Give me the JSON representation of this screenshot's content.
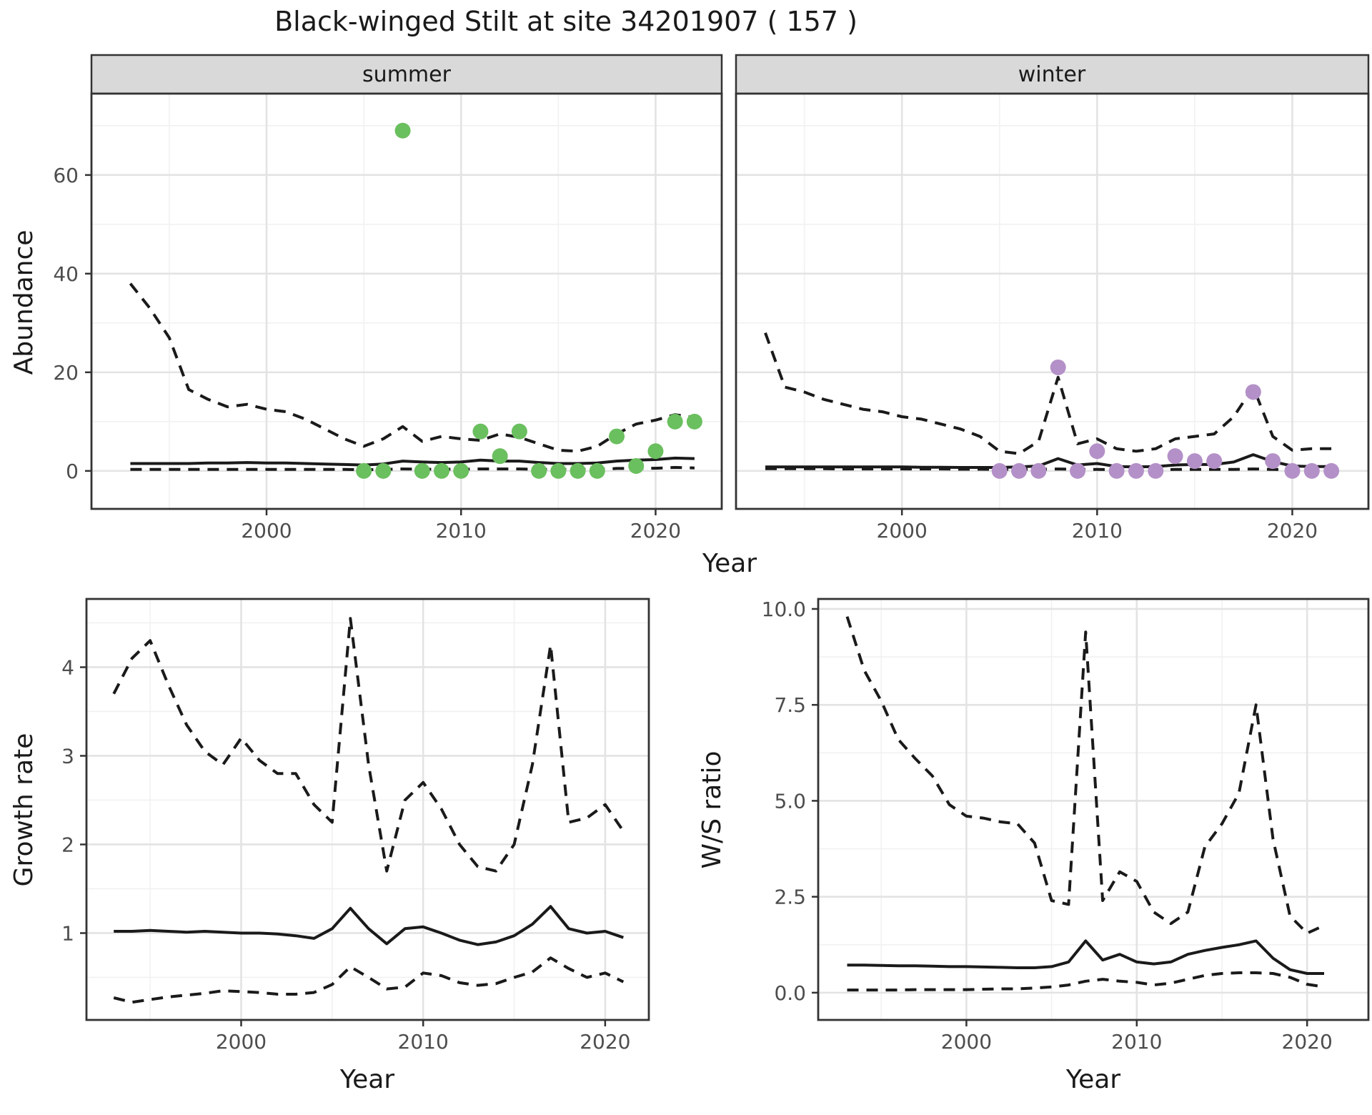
{
  "title": "Black-winged Stilt at site 34201907 ( 157 )",
  "labels": {
    "year": "Year",
    "abundance": "Abundance",
    "growth_rate": "Growth rate",
    "ws_ratio": "W/S ratio",
    "facet_summer": "summer",
    "facet_winter": "winter"
  },
  "colors": {
    "summer_point": "#6abf5e",
    "winter_point": "#b490c8",
    "line": "#1a1a1a",
    "strip_bg": "#d9d9d9",
    "panel_border": "#333333",
    "grid_major": "#e3e3e3",
    "grid_minor": "#f1f1f1",
    "tick_label": "#4d4d4d"
  },
  "chart_data": [
    {
      "id": "abundance-summer",
      "type": "line",
      "facet": "summer",
      "title": "",
      "xlabel": "Year",
      "ylabel": "Abundance",
      "xlim": [
        1991.0,
        2023.4
      ],
      "ylim": [
        -7.7,
        76.5
      ],
      "xticks": [
        2000,
        2010,
        2020
      ],
      "xminor": [
        1995,
        2005,
        2015
      ],
      "yticks": [
        0,
        20,
        40,
        60
      ],
      "ytick_labels": [
        "0",
        "20",
        "40",
        "60"
      ],
      "yminor": [
        10,
        30,
        50,
        70
      ],
      "x": [
        1993,
        1994,
        1995,
        1996,
        1997,
        1998,
        1999,
        2000,
        2001,
        2002,
        2003,
        2004,
        2005,
        2006,
        2007,
        2008,
        2009,
        2010,
        2011,
        2012,
        2013,
        2014,
        2015,
        2016,
        2017,
        2018,
        2019,
        2020,
        2021,
        2022
      ],
      "series": [
        {
          "name": "upper_ci",
          "style": "dashed",
          "values": [
            38,
            33,
            27,
            16.5,
            14.5,
            13,
            13.5,
            12.5,
            12,
            10.5,
            8.5,
            6.5,
            5,
            6.5,
            9,
            6,
            7,
            6.5,
            6.2,
            7.5,
            6.8,
            5.5,
            4.2,
            4,
            5,
            7.5,
            9.5,
            10.3,
            11.4,
            10.8
          ]
        },
        {
          "name": "mean",
          "style": "solid",
          "values": [
            1.5,
            1.5,
            1.5,
            1.5,
            1.6,
            1.6,
            1.7,
            1.6,
            1.6,
            1.5,
            1.4,
            1.3,
            1.2,
            1.4,
            2.0,
            1.8,
            1.7,
            1.8,
            2.2,
            2.0,
            2.0,
            1.7,
            1.5,
            1.5,
            1.6,
            2.0,
            2.2,
            2.3,
            2.6,
            2.5
          ]
        },
        {
          "name": "lower_ci",
          "style": "dashed",
          "values": [
            0.3,
            0.3,
            0.3,
            0.3,
            0.3,
            0.3,
            0.3,
            0.3,
            0.3,
            0.3,
            0.3,
            0.3,
            0.25,
            0.3,
            0.4,
            0.35,
            0.35,
            0.35,
            0.4,
            0.4,
            0.4,
            0.3,
            0.3,
            0.3,
            0.3,
            0.5,
            0.5,
            0.55,
            0.7,
            0.6
          ]
        }
      ],
      "points": [
        [
          2005,
          0
        ],
        [
          2006,
          0
        ],
        [
          2007,
          69
        ],
        [
          2008,
          0
        ],
        [
          2009,
          0
        ],
        [
          2010,
          0
        ],
        [
          2011,
          8
        ],
        [
          2012,
          3
        ],
        [
          2013,
          8
        ],
        [
          2014,
          0
        ],
        [
          2015,
          0
        ],
        [
          2016,
          0
        ],
        [
          2017,
          0
        ],
        [
          2018,
          7
        ],
        [
          2019,
          1
        ],
        [
          2020,
          4
        ],
        [
          2021,
          10
        ],
        [
          2022,
          10
        ]
      ],
      "point_color_key": "summer_point"
    },
    {
      "id": "abundance-winter",
      "type": "line",
      "facet": "winter",
      "title": "",
      "xlabel": "Year",
      "ylabel": "Abundance",
      "xlim": [
        1991.5,
        2023.9
      ],
      "ylim": [
        -7.7,
        76.5
      ],
      "xticks": [
        2000,
        2010,
        2020
      ],
      "xminor": [
        1995,
        2005,
        2015
      ],
      "yticks": [],
      "ytick_labels": [],
      "yminor": [
        10,
        30,
        50,
        70
      ],
      "ygrid_major": [
        0,
        20,
        40,
        60
      ],
      "x": [
        1993,
        1994,
        1995,
        1996,
        1997,
        1998,
        1999,
        2000,
        2001,
        2002,
        2003,
        2004,
        2005,
        2006,
        2007,
        2008,
        2009,
        2010,
        2011,
        2012,
        2013,
        2014,
        2015,
        2016,
        2017,
        2018,
        2019,
        2020,
        2021,
        2022
      ],
      "series": [
        {
          "name": "upper_ci",
          "style": "dashed",
          "values": [
            28,
            17,
            16,
            14.5,
            13.5,
            12.5,
            12,
            11,
            10.5,
            9.5,
            8.5,
            7,
            4,
            3.5,
            6,
            19,
            5.5,
            6.5,
            4.5,
            4,
            4.5,
            6.5,
            7,
            7.5,
            11,
            17,
            7,
            4.2,
            4.5,
            4.5
          ]
        },
        {
          "name": "mean",
          "style": "solid",
          "values": [
            0.8,
            0.8,
            0.8,
            0.8,
            0.8,
            0.8,
            0.8,
            0.8,
            0.75,
            0.75,
            0.7,
            0.7,
            0.7,
            0.8,
            1.0,
            2.5,
            1.2,
            1.5,
            0.9,
            0.8,
            0.9,
            1.2,
            1.3,
            1.3,
            1.8,
            3.3,
            1.9,
            1.0,
            0.9,
            0.9
          ]
        },
        {
          "name": "lower_ci",
          "style": "dashed",
          "values": [
            0.45,
            0.45,
            0.45,
            0.45,
            0.4,
            0.4,
            0.4,
            0.4,
            0.4,
            0.4,
            0.35,
            0.35,
            0.3,
            0.3,
            0.3,
            0.4,
            0.3,
            0.3,
            0.25,
            0.25,
            0.25,
            0.3,
            0.3,
            0.3,
            0.3,
            0.4,
            0.3,
            0.25,
            0.2,
            0.2
          ]
        }
      ],
      "points": [
        [
          2005,
          0
        ],
        [
          2006,
          0
        ],
        [
          2007,
          0
        ],
        [
          2008,
          21
        ],
        [
          2009,
          0
        ],
        [
          2010,
          4
        ],
        [
          2011,
          0
        ],
        [
          2012,
          0
        ],
        [
          2013,
          0
        ],
        [
          2014,
          3
        ],
        [
          2015,
          2
        ],
        [
          2016,
          2
        ],
        [
          2018,
          16
        ],
        [
          2019,
          2
        ],
        [
          2020,
          0
        ],
        [
          2021,
          0
        ],
        [
          2022,
          0
        ]
      ],
      "point_color_key": "winter_point"
    },
    {
      "id": "growth-rate",
      "type": "line",
      "facet": "",
      "title": "",
      "xlabel": "Year",
      "ylabel": "Growth rate",
      "xlim": [
        1991.5,
        2022.4
      ],
      "ylim": [
        0.02,
        4.77
      ],
      "xticks": [
        2000,
        2010,
        2020
      ],
      "xminor": [
        1995,
        2005,
        2015
      ],
      "yticks": [
        1,
        2,
        3,
        4
      ],
      "ytick_labels": [
        "1",
        "2",
        "3",
        "4"
      ],
      "yminor": [
        0.5,
        1.5,
        2.5,
        3.5,
        4.5
      ],
      "x": [
        1993,
        1994,
        1995,
        1996,
        1997,
        1998,
        1999,
        2000,
        2001,
        2002,
        2003,
        2004,
        2005,
        2006,
        2007,
        2008,
        2009,
        2010,
        2011,
        2012,
        2013,
        2014,
        2015,
        2016,
        2017,
        2018,
        2019,
        2020,
        2021
      ],
      "series": [
        {
          "name": "upper_ci",
          "style": "dashed",
          "values": [
            3.7,
            4.1,
            4.3,
            3.8,
            3.35,
            3.05,
            2.9,
            3.2,
            2.95,
            2.8,
            2.8,
            2.45,
            2.25,
            4.55,
            2.9,
            1.7,
            2.5,
            2.7,
            2.4,
            2.0,
            1.75,
            1.7,
            2.0,
            2.9,
            4.25,
            2.25,
            2.3,
            2.45,
            2.15
          ]
        },
        {
          "name": "mean",
          "style": "solid",
          "values": [
            1.02,
            1.02,
            1.03,
            1.02,
            1.01,
            1.02,
            1.01,
            1.0,
            1.0,
            0.99,
            0.97,
            0.94,
            1.05,
            1.28,
            1.05,
            0.88,
            1.05,
            1.07,
            1.0,
            0.92,
            0.87,
            0.9,
            0.97,
            1.1,
            1.3,
            1.05,
            1.0,
            1.02,
            0.95
          ]
        },
        {
          "name": "lower_ci",
          "style": "dashed",
          "values": [
            0.27,
            0.22,
            0.25,
            0.28,
            0.3,
            0.32,
            0.35,
            0.34,
            0.33,
            0.31,
            0.31,
            0.33,
            0.42,
            0.62,
            0.5,
            0.37,
            0.39,
            0.55,
            0.52,
            0.44,
            0.41,
            0.43,
            0.5,
            0.56,
            0.72,
            0.6,
            0.5,
            0.55,
            0.45
          ]
        }
      ],
      "points": [],
      "point_color_key": "summer_point"
    },
    {
      "id": "ws-ratio",
      "type": "line",
      "facet": "",
      "title": "",
      "xlabel": "Year",
      "ylabel": "W/S ratio",
      "xlim": [
        1991.3,
        2023.6
      ],
      "ylim": [
        -0.71,
        10.26
      ],
      "xticks": [
        2000,
        2010,
        2020
      ],
      "xminor": [
        1995,
        2005,
        2015
      ],
      "yticks": [
        0,
        2.5,
        5,
        7.5,
        10
      ],
      "ytick_labels": [
        "0.0",
        "2.5",
        "5.0",
        "7.5",
        "10.0"
      ],
      "yminor": [
        1.25,
        3.75,
        6.25,
        8.75
      ],
      "x": [
        1993,
        1994,
        1995,
        1996,
        1997,
        1998,
        1999,
        2000,
        2001,
        2002,
        2003,
        2004,
        2005,
        2006,
        2007,
        2008,
        2009,
        2010,
        2011,
        2012,
        2013,
        2014,
        2015,
        2016,
        2017,
        2018,
        2019,
        2020,
        2021
      ],
      "series": [
        {
          "name": "upper_ci",
          "style": "dashed",
          "values": [
            9.8,
            8.4,
            7.6,
            6.6,
            6.1,
            5.65,
            4.9,
            4.6,
            4.55,
            4.45,
            4.4,
            3.9,
            2.4,
            2.3,
            9.4,
            2.4,
            3.15,
            2.9,
            2.1,
            1.8,
            2.1,
            3.8,
            4.4,
            5.2,
            7.5,
            4.0,
            2.0,
            1.55,
            1.75
          ]
        },
        {
          "name": "mean",
          "style": "solid",
          "values": [
            0.72,
            0.72,
            0.71,
            0.7,
            0.7,
            0.69,
            0.68,
            0.68,
            0.67,
            0.66,
            0.65,
            0.65,
            0.68,
            0.8,
            1.35,
            0.85,
            1.0,
            0.8,
            0.75,
            0.8,
            1.0,
            1.1,
            1.18,
            1.25,
            1.35,
            0.9,
            0.6,
            0.5,
            0.5
          ]
        },
        {
          "name": "lower_ci",
          "style": "dashed",
          "values": [
            0.07,
            0.07,
            0.07,
            0.07,
            0.08,
            0.08,
            0.08,
            0.08,
            0.09,
            0.1,
            0.1,
            0.12,
            0.15,
            0.2,
            0.3,
            0.35,
            0.3,
            0.27,
            0.2,
            0.25,
            0.35,
            0.45,
            0.5,
            0.52,
            0.52,
            0.5,
            0.4,
            0.22,
            0.15
          ]
        }
      ],
      "points": [],
      "point_color_key": "winter_point"
    }
  ]
}
